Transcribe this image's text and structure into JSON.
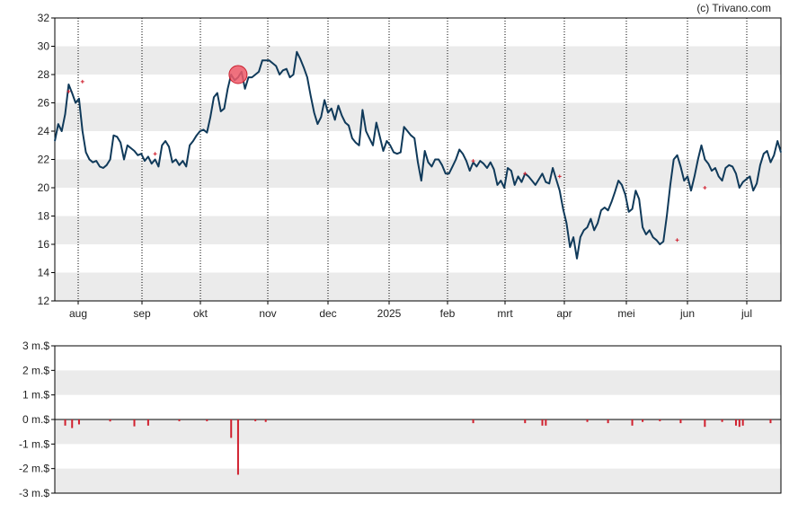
{
  "credit": "(c) Trivano.com",
  "colors": {
    "band": "#ebebeb",
    "price_line": "#103a5a",
    "volume_bar": "#d0202e",
    "marker_fill": "#f05a6a",
    "marker_stroke": "#c8202e",
    "vgrid": "#000000"
  },
  "chart_data": [
    {
      "type": "line",
      "x_ticks": [
        "aug",
        "sep",
        "okt",
        "nov",
        "dec",
        "2025",
        "feb",
        "mrt",
        "apr",
        "mei",
        "jun",
        "jul"
      ],
      "y_ticks": [
        "32",
        "30",
        "28",
        "26",
        "24",
        "22",
        "20",
        "18",
        "16",
        "14",
        "12"
      ],
      "ylim": [
        12,
        32
      ],
      "grid": true,
      "banded_background": true,
      "series": [
        {
          "values": [
            23.3,
            24.5,
            24.0,
            25.2,
            27.3,
            26.7,
            26.0,
            26.3,
            24.0,
            22.5,
            22.0,
            21.8,
            21.9,
            21.5,
            21.4,
            21.6,
            22.0,
            23.7,
            23.6,
            23.2,
            22.0,
            23.0,
            22.8,
            22.6,
            22.3,
            22.4,
            21.9,
            22.2,
            21.7,
            22.0,
            21.5,
            23.0,
            23.3,
            22.9,
            21.8,
            22.0,
            21.6,
            21.9,
            21.5,
            23.0,
            23.3,
            23.7,
            24.0,
            24.1,
            23.9,
            25.0,
            26.4,
            26.7,
            25.4,
            25.6,
            27.0,
            28.0,
            27.6,
            27.8,
            28.2,
            27.0,
            27.8,
            27.8,
            28.0,
            28.2,
            29.0,
            29.0,
            29.0,
            28.8,
            28.6,
            28.0,
            28.3,
            28.4,
            27.8,
            28.0,
            29.6,
            29.1,
            28.5,
            27.8,
            26.5,
            25.3,
            24.5,
            25.0,
            26.2,
            25.3,
            25.6,
            24.8,
            25.8,
            25.1,
            24.6,
            24.4,
            23.5,
            23.2,
            23.0,
            25.5,
            24.0,
            23.5,
            23.0,
            24.6,
            23.6,
            22.6,
            23.3,
            23.0,
            22.5,
            22.4,
            22.5,
            24.3,
            24.0,
            23.7,
            23.5,
            21.8,
            20.5,
            22.6,
            21.8,
            21.5,
            22.0,
            22.0,
            21.6,
            21.0,
            21.0,
            21.5,
            22.0,
            22.7,
            22.4,
            21.9,
            21.2,
            21.8,
            21.5,
            21.9,
            21.7,
            21.4,
            21.8,
            21.3,
            20.2,
            20.5,
            20.0,
            21.4,
            21.2,
            20.2,
            20.8,
            20.4,
            21.0,
            20.8,
            20.5,
            20.2,
            20.6,
            21.0,
            20.4,
            20.3,
            21.4,
            20.6,
            19.8,
            18.5,
            17.5,
            15.8,
            16.5,
            15.0,
            16.5,
            17.0,
            17.2,
            17.8,
            17.0,
            17.5,
            18.4,
            18.6,
            18.4,
            19.0,
            19.7,
            20.5,
            20.2,
            19.5,
            18.3,
            18.5,
            19.8,
            19.2,
            17.2,
            16.7,
            17.0,
            16.5,
            16.3,
            16.0,
            16.2,
            18.0,
            20.2,
            22.0,
            22.3,
            21.5,
            20.5,
            20.8,
            19.8,
            20.8,
            22.0,
            23.0,
            22.0,
            21.7,
            21.2,
            21.4,
            20.8,
            20.5,
            21.4,
            21.6,
            21.5,
            21.0,
            20.0,
            20.4,
            20.6,
            20.8,
            19.8,
            20.3,
            21.6,
            22.4,
            22.6,
            21.8,
            22.3,
            23.3,
            22.5
          ]
        }
      ],
      "trade_markers": [
        {
          "x_index": 4,
          "y": 26.8,
          "symbol": "+"
        },
        {
          "x_index": 8,
          "y": 27.5,
          "symbol": "+"
        },
        {
          "x_index": 29,
          "y": 22.4,
          "symbol": "+"
        },
        {
          "x_index": 53,
          "y": 28.0,
          "symbol": "circle"
        },
        {
          "x_index": 62,
          "y": 30.0,
          "symbol": "dot"
        },
        {
          "x_index": 121,
          "y": 21.9,
          "symbol": "+"
        },
        {
          "x_index": 136,
          "y": 21.0,
          "symbol": "+"
        },
        {
          "x_index": 146,
          "y": 20.8,
          "symbol": "+"
        },
        {
          "x_index": 180,
          "y": 16.3,
          "symbol": "+"
        },
        {
          "x_index": 188,
          "y": 20.0,
          "symbol": "+"
        }
      ]
    },
    {
      "type": "bar",
      "unit": "m.$",
      "y_ticks": [
        "3 m.$",
        "2 m.$",
        "1 m.$",
        "0 m.$",
        "-1 m.$",
        "-2 m.$",
        "-3 m.$"
      ],
      "ylim": [
        -3,
        3
      ],
      "grid": true,
      "banded_background": true,
      "bars": [
        {
          "x_index": 3,
          "value": -0.25
        },
        {
          "x_index": 5,
          "value": -0.35
        },
        {
          "x_index": 7,
          "value": -0.2
        },
        {
          "x_index": 16,
          "value": -0.08
        },
        {
          "x_index": 23,
          "value": -0.28
        },
        {
          "x_index": 27,
          "value": -0.25
        },
        {
          "x_index": 36,
          "value": -0.07
        },
        {
          "x_index": 44,
          "value": -0.07
        },
        {
          "x_index": 51,
          "value": -0.75
        },
        {
          "x_index": 53,
          "value": -2.25
        },
        {
          "x_index": 58,
          "value": -0.07
        },
        {
          "x_index": 61,
          "value": -0.1
        },
        {
          "x_index": 121,
          "value": -0.15
        },
        {
          "x_index": 136,
          "value": -0.15
        },
        {
          "x_index": 141,
          "value": -0.25
        },
        {
          "x_index": 142,
          "value": -0.25
        },
        {
          "x_index": 154,
          "value": -0.1
        },
        {
          "x_index": 160,
          "value": -0.15
        },
        {
          "x_index": 167,
          "value": -0.25
        },
        {
          "x_index": 170,
          "value": -0.1
        },
        {
          "x_index": 175,
          "value": -0.07
        },
        {
          "x_index": 181,
          "value": -0.15
        },
        {
          "x_index": 188,
          "value": -0.3
        },
        {
          "x_index": 193,
          "value": -0.1
        },
        {
          "x_index": 197,
          "value": -0.25
        },
        {
          "x_index": 198,
          "value": -0.3
        },
        {
          "x_index": 199,
          "value": -0.25
        },
        {
          "x_index": 207,
          "value": -0.15
        }
      ]
    }
  ]
}
